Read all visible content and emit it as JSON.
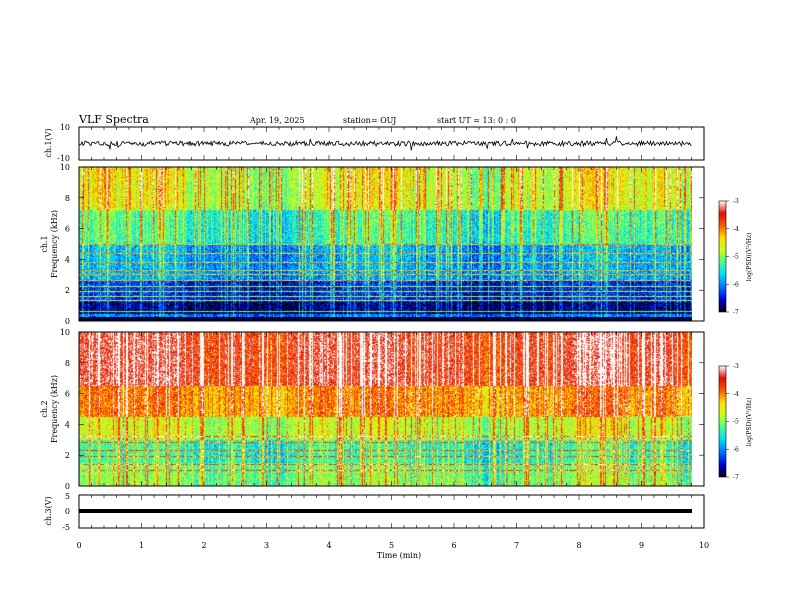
{
  "header": {
    "title": "VLF Spectra",
    "date": "Apr. 19, 2025",
    "station": "station= OUJ",
    "start": "start  UT  =   13: 0  : 0"
  },
  "colors": {
    "waveform": "#000000",
    "colormap": [
      "#000000",
      "#0000d8",
      "#0070ff",
      "#00d8ff",
      "#40ff90",
      "#c8ff20",
      "#ffe000",
      "#ff5a00",
      "#e01000",
      "#ffffff"
    ]
  },
  "chart_data": [
    {
      "type": "line",
      "panel": "ch1-waveform",
      "ylabel": "ch.1(V)",
      "ylim": [
        -10,
        10
      ],
      "yticks": [
        "10",
        "-10"
      ],
      "xlim": [
        0,
        10
      ],
      "baseline": 0,
      "noise_amplitude": 1.5
    },
    {
      "type": "heatmap",
      "panel": "ch1-spectrogram",
      "ylabel": "Frequency (kHz)",
      "channel_label": "ch.1",
      "xlim": [
        0,
        9.8
      ],
      "ylim": [
        0,
        10
      ],
      "yticks": [
        "0",
        "2",
        "4",
        "6",
        "8",
        "10"
      ],
      "colorbar": {
        "label": "log(PSD)(V²/Hz)",
        "range": [
          -7,
          -3
        ],
        "ticks": [
          "-3",
          "-4",
          "-5",
          "-6",
          "-7"
        ]
      },
      "bands": [
        {
          "from": 0.0,
          "to": 0.4,
          "level": -6.2
        },
        {
          "from": 0.4,
          "to": 1.2,
          "level": -6.9
        },
        {
          "from": 1.2,
          "to": 2.6,
          "level": -6.6
        },
        {
          "from": 2.6,
          "to": 5.0,
          "level": -6.1
        },
        {
          "from": 5.0,
          "to": 7.2,
          "level": -5.6
        },
        {
          "from": 7.2,
          "to": 10.0,
          "level": -5.0
        }
      ],
      "lines_khz": [
        0.6,
        1.3,
        1.6,
        1.9,
        2.2,
        2.6,
        3.0,
        3.3,
        3.8,
        4.4,
        5.0
      ]
    },
    {
      "type": "heatmap",
      "panel": "ch2-spectrogram",
      "ylabel": "Frequency (kHz)",
      "channel_label": "ch.2",
      "xlim": [
        0,
        9.8
      ],
      "ylim": [
        0,
        10
      ],
      "yticks": [
        "0",
        "2",
        "4",
        "6",
        "8",
        "10"
      ],
      "colorbar": {
        "label": "log(PSD)(V²/Hz)",
        "range": [
          -7,
          -3
        ],
        "ticks": [
          "-3",
          "-4",
          "-5",
          "-6",
          "-7"
        ]
      },
      "bands": [
        {
          "from": 0.0,
          "to": 1.5,
          "level": -5.3
        },
        {
          "from": 1.5,
          "to": 3.0,
          "level": -5.6
        },
        {
          "from": 3.0,
          "to": 4.5,
          "level": -5.0
        },
        {
          "from": 4.5,
          "to": 6.5,
          "level": -4.3
        },
        {
          "from": 6.5,
          "to": 10.0,
          "level": -3.7
        }
      ],
      "lines_khz": [
        1.0,
        1.4,
        1.9,
        2.3,
        2.8,
        3.2
      ]
    },
    {
      "type": "line",
      "panel": "ch3-waveform",
      "ylabel": "ch.3(V)",
      "ylim": [
        -5,
        5
      ],
      "yticks": [
        "5",
        "0",
        "-5"
      ],
      "xlim": [
        0,
        10
      ],
      "baseline": 0,
      "noise_amplitude": 0
    }
  ],
  "x_axis": {
    "label": "Time (min)",
    "range": [
      0,
      10
    ],
    "ticks": [
      "0",
      "1",
      "2",
      "3",
      "4",
      "5",
      "6",
      "7",
      "8",
      "9",
      "10"
    ]
  }
}
